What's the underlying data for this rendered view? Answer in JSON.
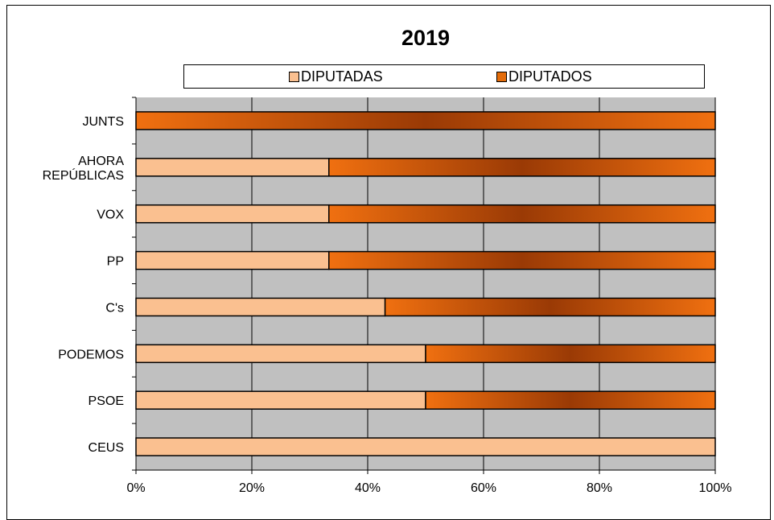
{
  "chart_data": {
    "type": "bar",
    "orientation": "horizontal",
    "stacked": "percent",
    "title": "2019",
    "categories": [
      "JUNTS",
      "AHORA REPÚBLICAS",
      "VOX",
      "PP",
      "C's",
      "PODEMOS",
      "PSOE",
      "CEUS"
    ],
    "series": [
      {
        "name": "DIPUTADAS",
        "values": [
          0.0,
          33.3,
          33.3,
          33.3,
          43.0,
          50.0,
          50.0,
          100.0
        ],
        "color": "#fac090"
      },
      {
        "name": "DIPUTADOS",
        "values": [
          100.0,
          66.7,
          66.7,
          66.7,
          57.0,
          50.0,
          50.0,
          0.0
        ],
        "color": "#e46c0a"
      }
    ],
    "xlim": [
      0,
      100
    ],
    "x_ticks": [
      "0%",
      "20%",
      "40%",
      "60%",
      "80%",
      "100%"
    ],
    "grid": true,
    "legend_position": "top",
    "plot_background": "#c0c0c0"
  }
}
